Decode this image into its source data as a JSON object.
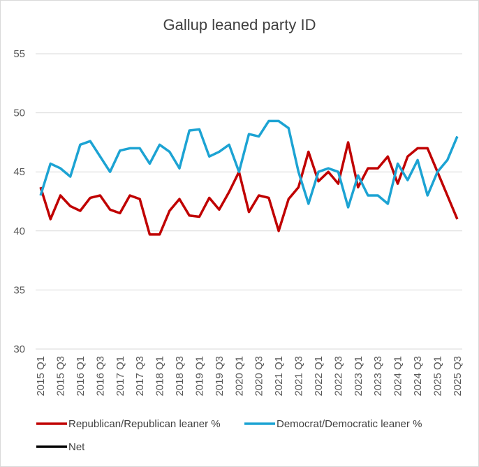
{
  "chart_data": {
    "type": "line",
    "title": "Gallup leaned party ID",
    "categories": [
      "2015 Q1",
      null,
      "2015 Q3",
      null,
      "2016 Q1",
      null,
      "2016 Q3",
      null,
      "2017 Q1",
      null,
      "2017 Q3",
      null,
      "2018 Q1",
      null,
      "2018 Q3",
      null,
      "2019 Q1",
      null,
      "2019 Q3",
      null,
      "2020 Q1",
      null,
      "2020 Q3",
      null,
      "2021 Q1",
      null,
      "2021 Q3",
      null,
      "2022 Q1",
      null,
      "2022 Q3",
      null,
      "2023 Q1",
      null,
      "2023 Q3",
      null,
      "2024 Q1",
      null,
      "2024 Q3",
      null,
      "2025 Q1",
      null,
      "2025 Q3"
    ],
    "series": [
      {
        "name": "Republican/Republican leaner %",
        "color": "#c00000",
        "values": [
          43.7,
          41.0,
          43.0,
          42.1,
          41.7,
          42.8,
          43.0,
          41.8,
          41.5,
          43.0,
          42.7,
          39.7,
          39.7,
          41.7,
          42.7,
          41.3,
          41.2,
          42.8,
          41.8,
          43.3,
          45.0,
          41.6,
          43.0,
          42.8,
          40.0,
          42.7,
          43.7,
          46.7,
          44.2,
          45.0,
          44.0,
          47.5,
          43.7,
          45.3,
          45.3,
          46.3,
          44.0,
          46.3,
          47.0,
          47.0,
          45.0,
          43.0,
          41.0
        ]
      },
      {
        "name": "Democrat/Democratic leaner %",
        "color": "#1ca3d3",
        "values": [
          43.0,
          45.7,
          45.3,
          44.6,
          47.3,
          47.6,
          46.3,
          45.0,
          46.8,
          47.0,
          47.0,
          45.7,
          47.3,
          46.7,
          45.3,
          48.5,
          48.6,
          46.3,
          46.7,
          47.3,
          45.0,
          48.2,
          48.0,
          49.3,
          49.3,
          48.7,
          45.0,
          42.3,
          45.0,
          45.3,
          45.0,
          42.0,
          44.7,
          43.0,
          43.0,
          42.3,
          45.7,
          44.3,
          46.0,
          43.0,
          45.0,
          46.0,
          48.0
        ]
      },
      {
        "name": "Net",
        "color": "#000000",
        "values": [
          null,
          null,
          null,
          null,
          null,
          null,
          null,
          null,
          null,
          null,
          null,
          null,
          null,
          null,
          null,
          null,
          null,
          null,
          null,
          null,
          null,
          null,
          null,
          null,
          null,
          null,
          null,
          null,
          null,
          null,
          null,
          null,
          null,
          null,
          null,
          null,
          null,
          null,
          null,
          null,
          null,
          null,
          null
        ]
      }
    ],
    "ylim": [
      30,
      55
    ],
    "yticks": [
      30,
      35,
      40,
      45,
      50,
      55
    ],
    "grid": true
  }
}
